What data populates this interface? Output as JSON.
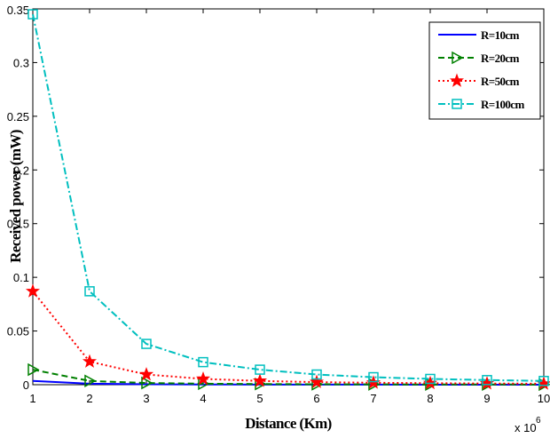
{
  "chart_data": {
    "type": "line",
    "title": "",
    "xlabel": "Distance (Km)",
    "ylabel": "Received power (mW)",
    "x_exponent_label": "x 10",
    "x_exponent_power": "6",
    "x": [
      1,
      2,
      3,
      4,
      5,
      6,
      7,
      8,
      9,
      10
    ],
    "xlim": [
      1,
      10
    ],
    "ylim": [
      0,
      0.35
    ],
    "x_ticks": [
      1,
      2,
      3,
      4,
      5,
      6,
      7,
      8,
      9,
      10
    ],
    "y_ticks": [
      0,
      0.05,
      0.1,
      0.15,
      0.2,
      0.25,
      0.3,
      0.35
    ],
    "y_tick_labels": [
      "0",
      "0.05",
      "0.1",
      "0.15",
      "0.2",
      "0.25",
      "0.3",
      "0.35"
    ],
    "grid": false,
    "legend_position": "top-right",
    "series": [
      {
        "name": "R=10cm",
        "color": "#0000ff",
        "line_style": "solid",
        "marker": "none",
        "values": [
          0.0035,
          0.0009,
          0.0004,
          0.0002,
          0.00014,
          0.0001,
          7e-05,
          5e-05,
          4e-05,
          3e-05
        ]
      },
      {
        "name": "R=20cm",
        "color": "#008000",
        "line_style": "dashed",
        "marker": "triangle-right",
        "values": [
          0.014,
          0.0035,
          0.0016,
          0.0009,
          0.0006,
          0.0004,
          0.0003,
          0.0002,
          0.00017,
          0.00014
        ]
      },
      {
        "name": "R=50cm",
        "color": "#ff0000",
        "line_style": "dotted",
        "marker": "star",
        "values": [
          0.087,
          0.0215,
          0.0095,
          0.0054,
          0.0035,
          0.0024,
          0.0018,
          0.0014,
          0.0011,
          0.0009
        ]
      },
      {
        "name": "R=100cm",
        "color": "#00bfbf",
        "line_style": "dash-dot",
        "marker": "square",
        "values": [
          0.345,
          0.087,
          0.038,
          0.021,
          0.014,
          0.0095,
          0.007,
          0.0054,
          0.0043,
          0.0035
        ]
      }
    ]
  }
}
